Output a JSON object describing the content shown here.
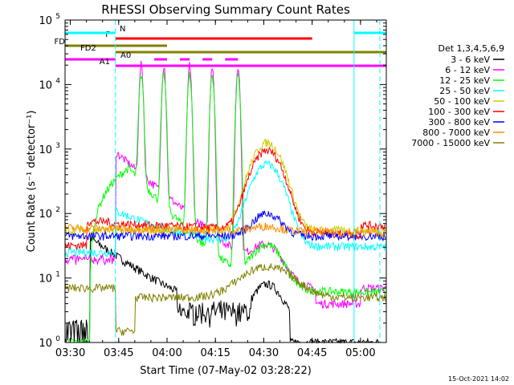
{
  "chart_data": {
    "type": "line",
    "title": "RHESSI Observing Summary Count Rates",
    "xlabel": "Start Time (07-May-02 03:28:22)",
    "ylabel": "Count Rate (s⁻¹ detector⁻¹)",
    "ylog": true,
    "ylim": [
      1,
      100000
    ],
    "xlim_minutes": [
      "03:28:22",
      "05:08:00"
    ],
    "x_ticks": [
      "03:30",
      "03:45",
      "04:00",
      "04:15",
      "04:30",
      "04:45",
      "05:00"
    ],
    "y_ticks": [
      "10^0",
      "10^1",
      "10^2",
      "10^3",
      "10^4",
      "10^5"
    ],
    "legend_title": "Det 1,3,4,5,6,9",
    "legend_position": "right",
    "timestamp": "15-Oct-2021 14:02",
    "series": [
      {
        "name": "3 - 6 keV",
        "color": "#000000"
      },
      {
        "name": "6 - 12 keV",
        "color": "#ff00ff"
      },
      {
        "name": "12 - 25 keV",
        "color": "#00ff00"
      },
      {
        "name": "25 - 50 keV",
        "color": "#00ffff"
      },
      {
        "name": "50 - 100 keV",
        "color": "#cccc00"
      },
      {
        "name": "100 - 300 keV",
        "color": "#ff0000"
      },
      {
        "name": "300 - 800 keV",
        "color": "#0000ff"
      },
      {
        "name": "800 - 7000 keV",
        "color": "#ff8c00"
      },
      {
        "name": "7000 - 15000 keV",
        "color": "#808000"
      }
    ],
    "flag_bars": [
      {
        "label": "N",
        "color": "#00ffff"
      },
      {
        "label": "F",
        "color": "#ff0000"
      },
      {
        "label": "FD",
        "color": "#808000"
      },
      {
        "label": "FD2",
        "color": "#808000"
      },
      {
        "label": "A0",
        "color": "#ff00ff"
      },
      {
        "label": "A1",
        "color": "#ff00ff"
      }
    ]
  }
}
